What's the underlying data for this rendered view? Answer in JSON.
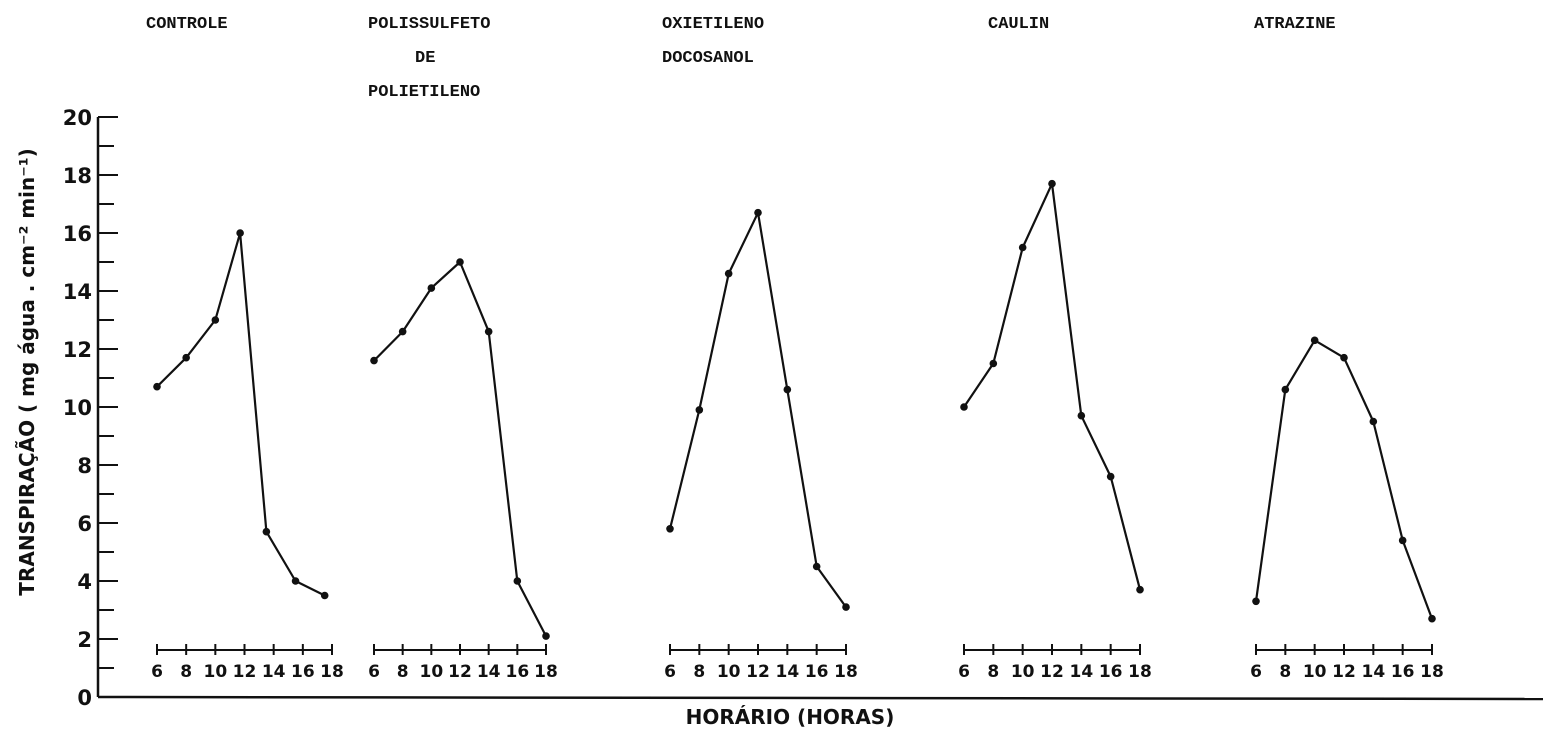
{
  "chart_data": {
    "type": "line",
    "ylabel": "TRANSPIRAÇÃO ( mg água . cm⁻² min⁻¹)",
    "xlabel": "HORÁRIO (HORAS)",
    "ylim": [
      0,
      20
    ],
    "yticks": [
      "0",
      "2",
      "4",
      "6",
      "8",
      "10",
      "12",
      "14",
      "16",
      "18",
      "20"
    ],
    "panels": [
      {
        "title_lines": [
          "CONTROLE"
        ],
        "xtick_labels": [
          "6",
          "8",
          "10",
          "12",
          "14",
          "16",
          "18"
        ],
        "points": [
          {
            "x": 6,
            "y": 10.7
          },
          {
            "x": 8,
            "y": 11.7
          },
          {
            "x": 10,
            "y": 13.0
          },
          {
            "x": 11.7,
            "y": 16.0
          },
          {
            "x": 13.5,
            "y": 5.7
          },
          {
            "x": 15.5,
            "y": 4.0
          },
          {
            "x": 17.5,
            "y": 3.5
          }
        ]
      },
      {
        "title_lines": [
          "POLISSULFETO",
          "DE",
          "POLIETILENO"
        ],
        "xtick_labels": [
          "6",
          "8",
          "10",
          "12",
          "14",
          "16",
          "18"
        ],
        "points": [
          {
            "x": 6,
            "y": 11.6
          },
          {
            "x": 8,
            "y": 12.6
          },
          {
            "x": 10,
            "y": 14.1
          },
          {
            "x": 12,
            "y": 15.0
          },
          {
            "x": 14,
            "y": 12.6
          },
          {
            "x": 16,
            "y": 4.0
          },
          {
            "x": 18,
            "y": 2.1
          }
        ]
      },
      {
        "title_lines": [
          "OXIETILENO",
          "DOCOSANOL"
        ],
        "xtick_labels": [
          "6",
          "8",
          "10",
          "12",
          "14",
          "16",
          "18"
        ],
        "points": [
          {
            "x": 6,
            "y": 5.8
          },
          {
            "x": 8,
            "y": 9.9
          },
          {
            "x": 10,
            "y": 14.6
          },
          {
            "x": 12,
            "y": 16.7
          },
          {
            "x": 14,
            "y": 10.6
          },
          {
            "x": 16,
            "y": 4.5
          },
          {
            "x": 18,
            "y": 3.1
          }
        ]
      },
      {
        "title_lines": [
          "CAULIN"
        ],
        "xtick_labels": [
          "6",
          "8",
          "10",
          "12",
          "14",
          "16",
          "18"
        ],
        "points": [
          {
            "x": 6,
            "y": 10.0
          },
          {
            "x": 8,
            "y": 11.5
          },
          {
            "x": 10,
            "y": 15.5
          },
          {
            "x": 12,
            "y": 17.7
          },
          {
            "x": 14,
            "y": 9.7
          },
          {
            "x": 16,
            "y": 7.6
          },
          {
            "x": 18,
            "y": 3.7
          }
        ]
      },
      {
        "title_lines": [
          "ATRAZINE"
        ],
        "xtick_labels": [
          "6",
          "8",
          "10",
          "12",
          "14",
          "16",
          "18"
        ],
        "points": [
          {
            "x": 6,
            "y": 3.3
          },
          {
            "x": 8,
            "y": 10.6
          },
          {
            "x": 10,
            "y": 12.3
          },
          {
            "x": 12,
            "y": 11.7
          },
          {
            "x": 14,
            "y": 9.5
          },
          {
            "x": 16,
            "y": 5.4
          },
          {
            "x": 18,
            "y": 2.7
          }
        ]
      }
    ]
  }
}
